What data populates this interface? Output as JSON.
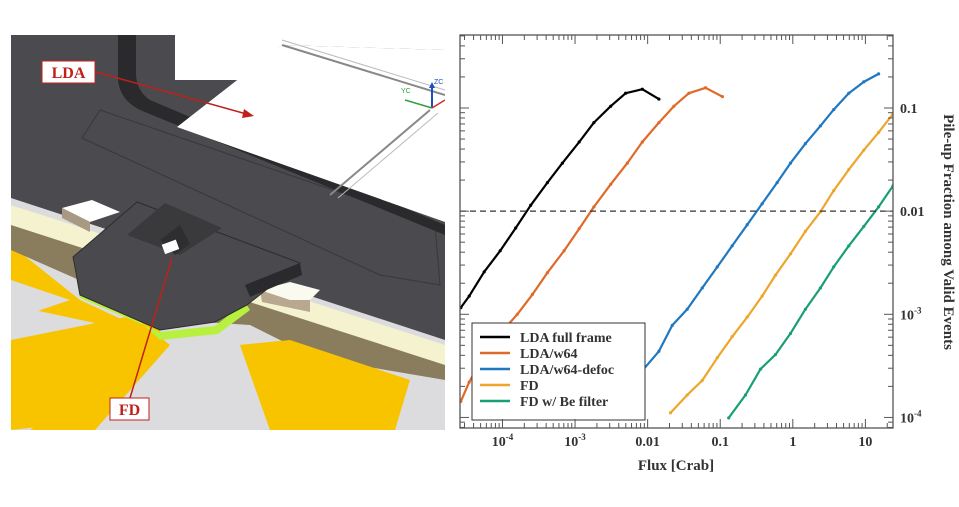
{
  "illustration": {
    "labels": [
      {
        "text": "LDA"
      },
      {
        "text": "FD"
      }
    ],
    "axis_triad_labels": [
      "YC",
      "ZC"
    ],
    "colors": {
      "plate": "#4b4b4f",
      "label_text": "#c0201a",
      "arrow": "#c0201a",
      "fan_yellow": "#f8c400",
      "fd_edge": "#b8f040"
    }
  },
  "chart_data": {
    "type": "line",
    "xlabel": "Flux [Crab]",
    "ylabel": "Pile-up Fraction among Valid Events",
    "xscale": "log",
    "yscale": "log",
    "xlim": [
      2.6e-05,
      24
    ],
    "ylim": [
      7.9e-05,
      0.51
    ],
    "x_ticks": [
      {
        "value": 0.0001,
        "base": "10",
        "exp": "-4"
      },
      {
        "value": 0.001,
        "base": "10",
        "exp": "-3"
      },
      {
        "value": 0.01,
        "label": "0.01"
      },
      {
        "value": 0.1,
        "label": "0.1"
      },
      {
        "value": 1,
        "label": "1"
      },
      {
        "value": 10,
        "label": "10"
      }
    ],
    "y_ticks": [
      {
        "value": 0.1,
        "label": "0.1"
      },
      {
        "value": 0.01,
        "label": "0.01"
      },
      {
        "value": 0.001,
        "base": "10",
        "exp": "-3"
      },
      {
        "value": 0.0001,
        "base": "10",
        "exp": "-4"
      }
    ],
    "y_axis_side": "right",
    "grid": false,
    "reference_line": {
      "y": 0.01,
      "style": "dashed",
      "color": "#333333"
    },
    "legend_position": "bottom-left",
    "series": [
      {
        "name": "LDA full frame",
        "color": "#000000",
        "x": [
          2.67e-05,
          3.48e-05,
          5.6e-05,
          9.3e-05,
          0.000152,
          0.000245,
          0.000416,
          0.00067,
          0.00114,
          0.00182,
          0.0031,
          0.00498,
          0.00845,
          0.0143
        ],
        "y": [
          0.00116,
          0.0015,
          0.00258,
          0.00413,
          0.00686,
          0.0114,
          0.0189,
          0.0292,
          0.0468,
          0.0721,
          0.104,
          0.139,
          0.152,
          0.122
        ]
      },
      {
        "name": "LDA/w64",
        "color": "#e06a28",
        "x": [
          2.67e-05,
          3.48e-05,
          5.6e-05,
          9.3e-05,
          0.00016,
          0.000259,
          0.000416,
          0.000706,
          0.00114,
          0.00182,
          0.0031,
          0.00525,
          0.00845,
          0.0143,
          0.023,
          0.037,
          0.0628,
          0.107
        ],
        "y": [
          0.000143,
          0.00022,
          0.000407,
          0.00065,
          0.001,
          0.00156,
          0.00253,
          0.00413,
          0.00676,
          0.011,
          0.0182,
          0.0292,
          0.0468,
          0.0721,
          0.104,
          0.139,
          0.157,
          0.129
        ]
      },
      {
        "name": "LDA/w64-defoc",
        "color": "#1f78c0",
        "x": [
          0.00344,
          0.00525,
          0.00845,
          0.0143,
          0.0218,
          0.0351,
          0.0565,
          0.091,
          0.146,
          0.235,
          0.378,
          0.608,
          0.929,
          1.49,
          2.4,
          3.66,
          5.9,
          9.5,
          15.2
        ],
        "y": [
          9.9e-05,
          0.000198,
          0.000284,
          0.000438,
          0.00078,
          0.00112,
          0.0018,
          0.00288,
          0.00461,
          0.00738,
          0.0118,
          0.0189,
          0.0292,
          0.0451,
          0.0671,
          0.0964,
          0.139,
          0.179,
          0.214
        ]
      },
      {
        "name": "FD",
        "color": "#eea62a",
        "x": [
          0.0207,
          0.0351,
          0.0565,
          0.091,
          0.146,
          0.235,
          0.378,
          0.577,
          0.929,
          1.49,
          2.4,
          3.66,
          5.9,
          9.5,
          15.2,
          24
        ],
        "y": [
          0.000111,
          0.000165,
          0.000228,
          0.000379,
          0.000607,
          0.000938,
          0.0015,
          0.0024,
          0.00385,
          0.00638,
          0.00986,
          0.0158,
          0.0253,
          0.039,
          0.058,
          0.0877
        ]
      },
      {
        "name": "FD w/ Be filter",
        "color": "#1a9e78",
        "x": [
          0.131,
          0.223,
          0.359,
          0.577,
          0.929,
          1.49,
          2.4,
          3.66,
          5.9,
          9.5,
          15.2,
          24
        ],
        "y": [
          9.9e-05,
          0.000165,
          0.000294,
          0.000407,
          0.000652,
          0.00112,
          0.0018,
          0.00288,
          0.00461,
          0.00711,
          0.011,
          0.0176
        ]
      }
    ]
  }
}
